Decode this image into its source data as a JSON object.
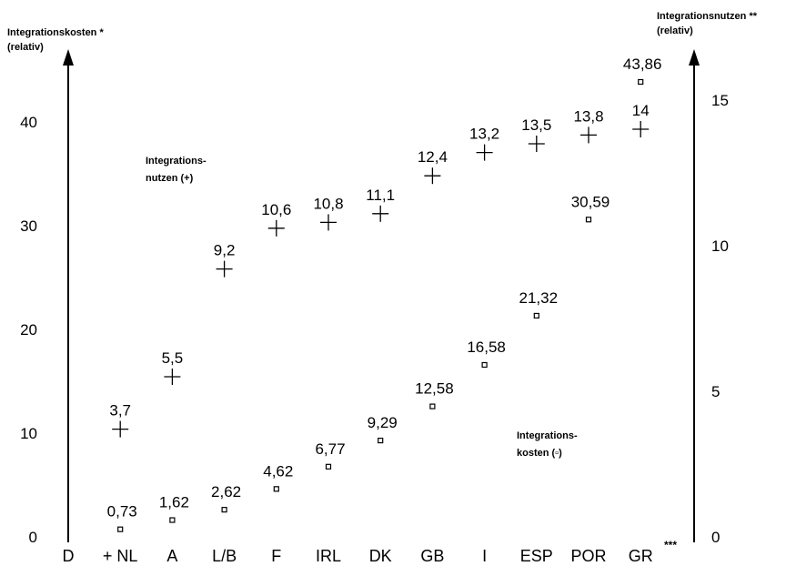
{
  "chart_data": {
    "type": "scatter",
    "title": "",
    "categories": [
      "D",
      "+ NL",
      "A",
      "L/B",
      "F",
      "IRL",
      "DK",
      "GB",
      "I",
      "ESP",
      "POR",
      "GR"
    ],
    "categories_footnote": "***",
    "left_axis": {
      "label_line1": "Integrationskosten *",
      "label_line2": "(relativ)",
      "ylim": [
        0,
        45
      ],
      "ticks": [
        "0",
        "10",
        "20",
        "30",
        "40"
      ]
    },
    "right_axis": {
      "label_line1": "Integrationsnutzen **",
      "label_line2": "(relativ)",
      "ylim": [
        0,
        16.5
      ],
      "ticks": [
        "0",
        "5",
        "10",
        "15"
      ]
    },
    "series": [
      {
        "legend_line1": "Integrations-",
        "legend_line2": "nutzen (+)",
        "marker": "plus",
        "axis": "right",
        "points": [
          {
            "category": "+ NL",
            "value": 3.7,
            "label": "3,7"
          },
          {
            "category": "A",
            "value": 5.5,
            "label": "5,5"
          },
          {
            "category": "L/B",
            "value": 9.2,
            "label": "9,2"
          },
          {
            "category": "F",
            "value": 10.6,
            "label": "10,6"
          },
          {
            "category": "IRL",
            "value": 10.8,
            "label": "10,8"
          },
          {
            "category": "DK",
            "value": 11.1,
            "label": "11,1"
          },
          {
            "category": "GB",
            "value": 12.4,
            "label": "12,4"
          },
          {
            "category": "I",
            "value": 13.2,
            "label": "13,2"
          },
          {
            "category": "ESP",
            "value": 13.5,
            "label": "13,5"
          },
          {
            "category": "POR",
            "value": 13.8,
            "label": "13,8"
          },
          {
            "category": "GR",
            "value": 14,
            "label": "14"
          }
        ]
      },
      {
        "legend_line1": "Integrations-",
        "legend_line2": "kosten (▫)",
        "marker": "square",
        "axis": "left",
        "points": [
          {
            "category": "+ NL",
            "value": 0.73,
            "label": "0,73"
          },
          {
            "category": "A",
            "value": 1.62,
            "label": "1,62"
          },
          {
            "category": "L/B",
            "value": 2.62,
            "label": "2,62"
          },
          {
            "category": "F",
            "value": 4.62,
            "label": "4,62"
          },
          {
            "category": "IRL",
            "value": 6.77,
            "label": "6,77"
          },
          {
            "category": "DK",
            "value": 9.29,
            "label": "9,29"
          },
          {
            "category": "GB",
            "value": 12.58,
            "label": "12,58"
          },
          {
            "category": "I",
            "value": 16.58,
            "label": "16,58"
          },
          {
            "category": "ESP",
            "value": 21.32,
            "label": "21,32"
          },
          {
            "category": "POR",
            "value": 30.59,
            "label": "30,59"
          },
          {
            "category": "GR",
            "value": 43.86,
            "label": "43,86"
          }
        ]
      }
    ]
  }
}
